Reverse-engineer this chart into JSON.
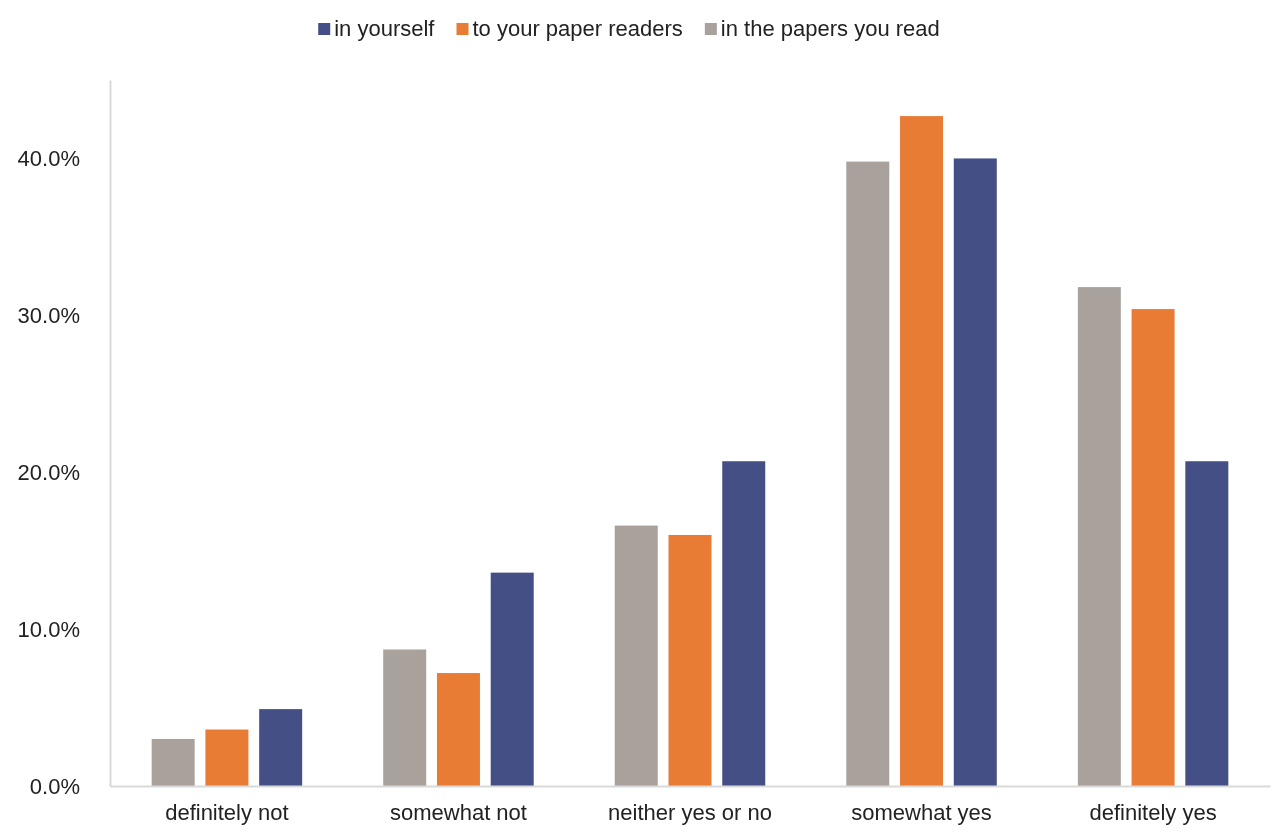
{
  "chart_data": {
    "type": "bar",
    "categories": [
      "definitely not",
      "somewhat not",
      "neither yes or no",
      "somewhat yes",
      "definitely yes"
    ],
    "series": [
      {
        "name": "in the papers you read",
        "color": "#a9a19c",
        "values": [
          3.0,
          8.7,
          16.6,
          39.8,
          31.8
        ]
      },
      {
        "name": "to your paper readers",
        "color": "#e97c35",
        "values": [
          3.6,
          7.2,
          16.0,
          42.7,
          30.4
        ]
      },
      {
        "name": "in yourself",
        "color": "#444f86",
        "values": [
          4.9,
          13.6,
          20.7,
          40.0,
          20.7
        ]
      }
    ],
    "ylim": [
      0,
      45
    ],
    "yticks": [
      {
        "value": 0,
        "label": "0.0%"
      },
      {
        "value": 10,
        "label": "10.0%"
      },
      {
        "value": 20,
        "label": "20.0%"
      },
      {
        "value": 30,
        "label": "30.0%"
      },
      {
        "value": 40,
        "label": "40.0%"
      }
    ],
    "grid": false,
    "legend": "top"
  }
}
